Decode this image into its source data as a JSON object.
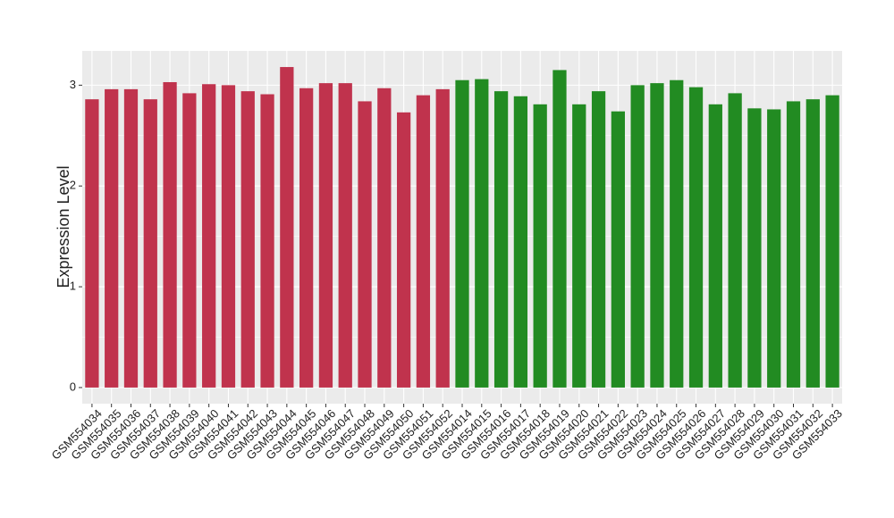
{
  "chart_data": {
    "type": "bar",
    "y_label": "Expression Level",
    "categories": [
      "GSM554034",
      "GSM554035",
      "GSM554036",
      "GSM554037",
      "GSM554038",
      "GSM554039",
      "GSM554040",
      "GSM554041",
      "GSM554042",
      "GSM554043",
      "GSM554044",
      "GSM554045",
      "GSM554046",
      "GSM554047",
      "GSM554048",
      "GSM554049",
      "GSM554050",
      "GSM554051",
      "GSM554052",
      "GSM554014",
      "GSM554015",
      "GSM554016",
      "GSM554017",
      "GSM554018",
      "GSM554019",
      "GSM554020",
      "GSM554021",
      "GSM554022",
      "GSM554023",
      "GSM554024",
      "GSM554025",
      "GSM554026",
      "GSM554027",
      "GSM554028",
      "GSM554029",
      "GSM554030",
      "GSM554031",
      "GSM554032",
      "GSM554033"
    ],
    "values": [
      2.86,
      2.96,
      2.96,
      2.86,
      3.03,
      2.92,
      3.01,
      3.0,
      2.94,
      2.91,
      3.18,
      2.97,
      3.02,
      3.02,
      2.84,
      2.97,
      2.73,
      2.9,
      2.96,
      3.05,
      3.06,
      2.94,
      2.89,
      2.81,
      3.15,
      2.81,
      2.94,
      2.74,
      3.0,
      3.02,
      3.05,
      2.98,
      2.81,
      2.92,
      2.77,
      2.76,
      2.84,
      2.86,
      2.9
    ],
    "colors": [
      "#c0334d",
      "#c0334d",
      "#c0334d",
      "#c0334d",
      "#c0334d",
      "#c0334d",
      "#c0334d",
      "#c0334d",
      "#c0334d",
      "#c0334d",
      "#c0334d",
      "#c0334d",
      "#c0334d",
      "#c0334d",
      "#c0334d",
      "#c0334d",
      "#c0334d",
      "#c0334d",
      "#c0334d",
      "#228b22",
      "#228b22",
      "#228b22",
      "#228b22",
      "#228b22",
      "#228b22",
      "#228b22",
      "#228b22",
      "#228b22",
      "#228b22",
      "#228b22",
      "#228b22",
      "#228b22",
      "#228b22",
      "#228b22",
      "#228b22",
      "#228b22",
      "#228b22",
      "#228b22",
      "#228b22"
    ],
    "ylim": [
      -0.16,
      3.34
    ],
    "yticks": [
      0,
      1,
      2,
      3
    ],
    "grid": true
  }
}
